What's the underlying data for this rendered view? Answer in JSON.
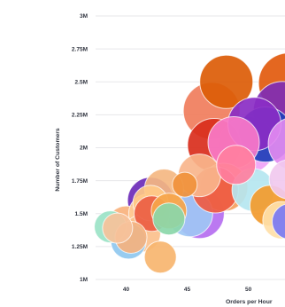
{
  "chart_data": {
    "type": "scatter",
    "title": "",
    "xlabel": "Orders per Hour",
    "ylabel": "Number of Customers",
    "xlim": [
      37.5,
      53
    ],
    "ylim": [
      1000000,
      3000000
    ],
    "x_ticks": [
      40,
      45,
      50
    ],
    "y_ticks": [
      1000000,
      1250000,
      1500000,
      1750000,
      2000000,
      2250000,
      2500000,
      2750000,
      3000000
    ],
    "x_tick_labels": [
      "40",
      "45",
      "50"
    ],
    "y_tick_labels": [
      "1M",
      "1.25M",
      "1.5M",
      "1.75M",
      "2M",
      "2.25M",
      "2.5M",
      "2.75M",
      "3M"
    ],
    "grid": true,
    "legend": "none",
    "series": [
      {
        "points": [
          {
            "x": 38.7,
            "y": 1400000,
            "size": 18,
            "color": "#9be3c7"
          },
          {
            "x": 39.3,
            "y": 1390000,
            "size": 17,
            "color": "#f6c29b"
          },
          {
            "x": 40.0,
            "y": 1410000,
            "size": 22,
            "color": "#f9b27d"
          },
          {
            "x": 40.2,
            "y": 1290000,
            "size": 20,
            "color": "#8fc8ef"
          },
          {
            "x": 40.4,
            "y": 1320000,
            "size": 18,
            "color": "#f4b27f"
          },
          {
            "x": 41.3,
            "y": 1350000,
            "size": 21,
            "color": "#fbc08c"
          },
          {
            "x": 42.8,
            "y": 1170000,
            "size": 18,
            "color": "#f7b56f"
          },
          {
            "x": 43.5,
            "y": 1460000,
            "size": 18,
            "color": "#8bd7a9"
          },
          {
            "x": 42.0,
            "y": 1580000,
            "size": 20,
            "color": "#ffc987"
          },
          {
            "x": 42.0,
            "y": 1600000,
            "size": 26,
            "color": "#6c2bb8"
          },
          {
            "x": 41.8,
            "y": 1500000,
            "size": 22,
            "color": "#ffcb95"
          },
          {
            "x": 42.1,
            "y": 1500000,
            "size": 20,
            "color": "#ec5e43"
          },
          {
            "x": 43.1,
            "y": 1690000,
            "size": 22,
            "color": "#f4b782"
          },
          {
            "x": 43.5,
            "y": 1520000,
            "size": 20,
            "color": "#f6a54a"
          },
          {
            "x": 44.8,
            "y": 1720000,
            "size": 14,
            "color": "#f0913b"
          },
          {
            "x": 46.0,
            "y": 1500000,
            "size": 28,
            "color": "#b56ef0"
          },
          {
            "x": 45.2,
            "y": 1500000,
            "size": 26,
            "color": "#9ec7f4"
          },
          {
            "x": 46.0,
            "y": 1790000,
            "size": 24,
            "color": "#f9b58c"
          },
          {
            "x": 47.3,
            "y": 1680000,
            "size": 26,
            "color": "#ee5b42"
          },
          {
            "x": 48.0,
            "y": 1700000,
            "size": 27,
            "color": "#f4a15f"
          },
          {
            "x": 47.2,
            "y": 2020000,
            "size": 30,
            "color": "#d92e1c"
          },
          {
            "x": 48.8,
            "y": 2040000,
            "size": 29,
            "color": "#f87ac8"
          },
          {
            "x": 47.0,
            "y": 2280000,
            "size": 32,
            "color": "#f07d5c"
          },
          {
            "x": 48.2,
            "y": 2500000,
            "size": 30,
            "color": "#dc5c07"
          },
          {
            "x": 49.9,
            "y": 2020000,
            "size": 32,
            "color": "#f0a3f6"
          },
          {
            "x": 50.5,
            "y": 2180000,
            "size": 30,
            "color": "#8a2cc4"
          },
          {
            "x": 51.4,
            "y": 2100000,
            "size": 31,
            "color": "#1f3fb8"
          },
          {
            "x": 52.8,
            "y": 2280000,
            "size": 33,
            "color": "#7f2db5"
          },
          {
            "x": 53.3,
            "y": 2490000,
            "size": 34,
            "color": "#e25a0d"
          },
          {
            "x": 53.8,
            "y": 2030000,
            "size": 30,
            "color": "#e28af0"
          },
          {
            "x": 51.8,
            "y": 1560000,
            "size": 23,
            "color": "#f29a2c"
          },
          {
            "x": 52.7,
            "y": 1450000,
            "size": 21,
            "color": "#ffe0a8"
          },
          {
            "x": 53.4,
            "y": 1440000,
            "size": 20,
            "color": "#7a7af3"
          },
          {
            "x": 53.3,
            "y": 1760000,
            "size": 22,
            "color": "#f1c9ef"
          },
          {
            "x": 50.4,
            "y": 1680000,
            "size": 24,
            "color": "#b5e6f0"
          },
          {
            "x": 49.0,
            "y": 1870000,
            "size": 22,
            "color": "#ff7fa0"
          }
        ]
      }
    ]
  }
}
